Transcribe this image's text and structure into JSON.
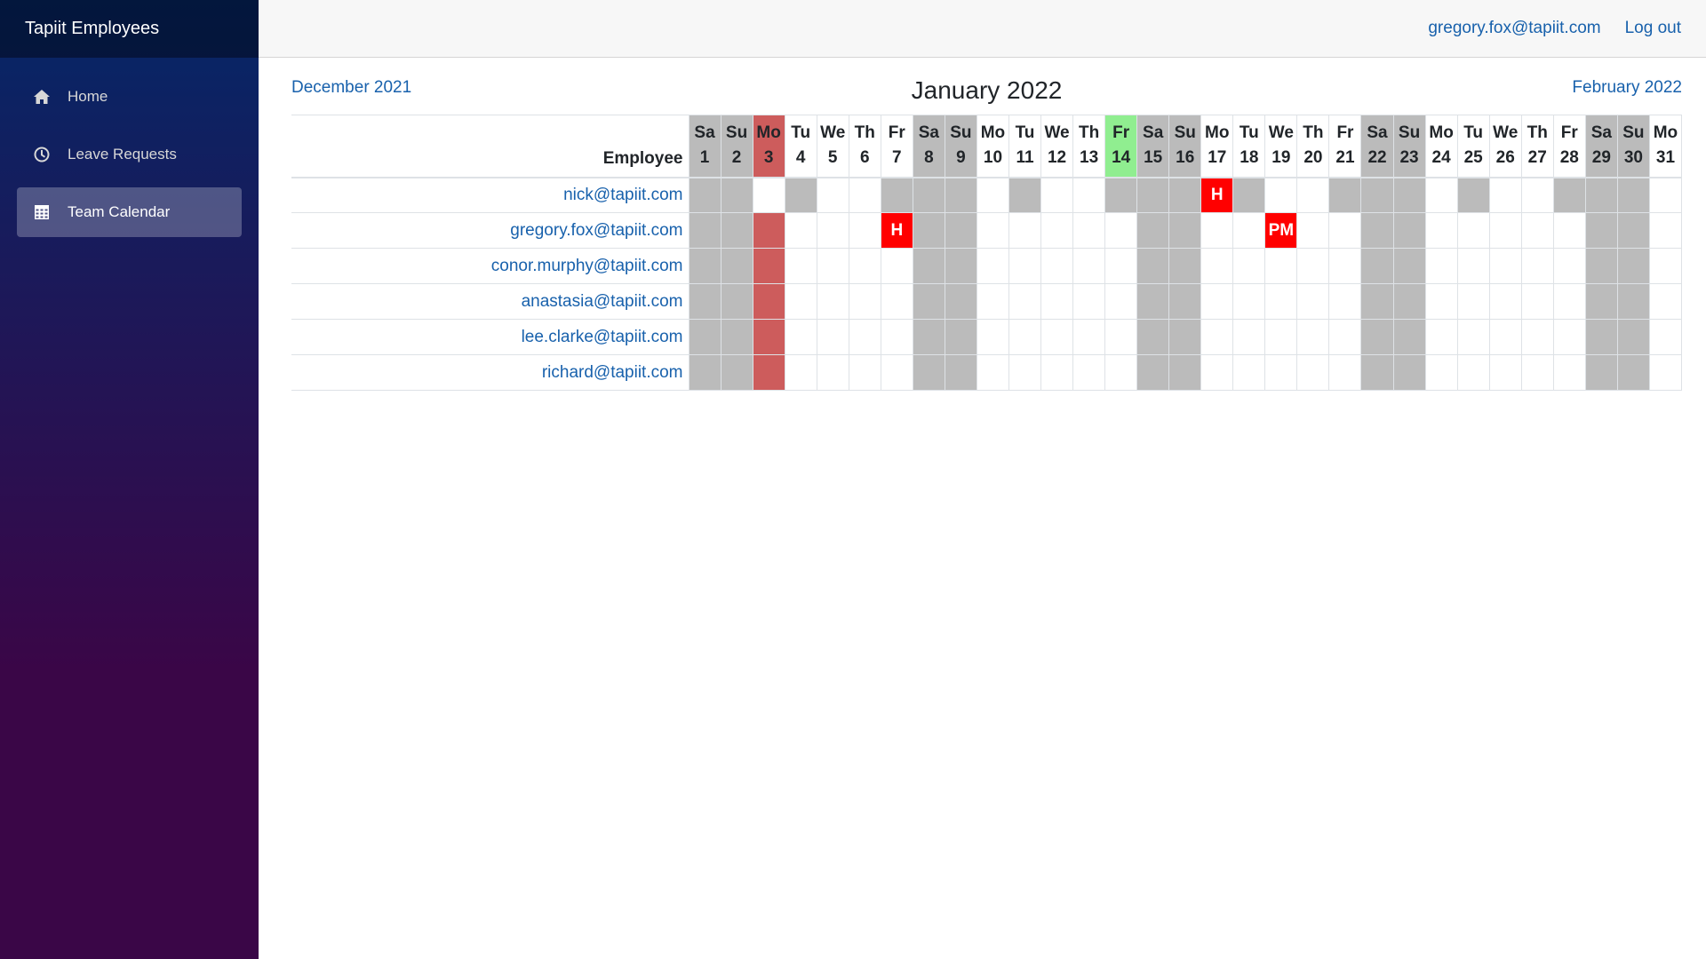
{
  "app": {
    "brand": "Tapiit Employees"
  },
  "sidebar": {
    "items": [
      {
        "label": "Home",
        "icon": "home-icon",
        "active": false
      },
      {
        "label": "Leave Requests",
        "icon": "clock-icon",
        "active": false
      },
      {
        "label": "Team Calendar",
        "icon": "calendar-icon",
        "active": true
      }
    ]
  },
  "header": {
    "user_email": "gregory.fox@tapiit.com",
    "logout_label": "Log out"
  },
  "calendar": {
    "prev_month": "December 2021",
    "title": "January 2022",
    "next_month": "February 2022",
    "employee_header": "Employee",
    "days": [
      {
        "abbr": "Sa",
        "num": "1",
        "type": "weekend"
      },
      {
        "abbr": "Su",
        "num": "2",
        "type": "weekend"
      },
      {
        "abbr": "Mo",
        "num": "3",
        "type": "holiday"
      },
      {
        "abbr": "Tu",
        "num": "4",
        "type": "weekday"
      },
      {
        "abbr": "We",
        "num": "5",
        "type": "weekday"
      },
      {
        "abbr": "Th",
        "num": "6",
        "type": "weekday"
      },
      {
        "abbr": "Fr",
        "num": "7",
        "type": "weekday"
      },
      {
        "abbr": "Sa",
        "num": "8",
        "type": "weekend"
      },
      {
        "abbr": "Su",
        "num": "9",
        "type": "weekend"
      },
      {
        "abbr": "Mo",
        "num": "10",
        "type": "weekday"
      },
      {
        "abbr": "Tu",
        "num": "11",
        "type": "weekday"
      },
      {
        "abbr": "We",
        "num": "12",
        "type": "weekday"
      },
      {
        "abbr": "Th",
        "num": "13",
        "type": "weekday"
      },
      {
        "abbr": "Fr",
        "num": "14",
        "type": "today"
      },
      {
        "abbr": "Sa",
        "num": "15",
        "type": "weekend"
      },
      {
        "abbr": "Su",
        "num": "16",
        "type": "weekend"
      },
      {
        "abbr": "Mo",
        "num": "17",
        "type": "weekday"
      },
      {
        "abbr": "Tu",
        "num": "18",
        "type": "weekday"
      },
      {
        "abbr": "We",
        "num": "19",
        "type": "weekday"
      },
      {
        "abbr": "Th",
        "num": "20",
        "type": "weekday"
      },
      {
        "abbr": "Fr",
        "num": "21",
        "type": "weekday"
      },
      {
        "abbr": "Sa",
        "num": "22",
        "type": "weekend"
      },
      {
        "abbr": "Su",
        "num": "23",
        "type": "weekend"
      },
      {
        "abbr": "Mo",
        "num": "24",
        "type": "weekday"
      },
      {
        "abbr": "Tu",
        "num": "25",
        "type": "weekday"
      },
      {
        "abbr": "We",
        "num": "26",
        "type": "weekday"
      },
      {
        "abbr": "Th",
        "num": "27",
        "type": "weekday"
      },
      {
        "abbr": "Fr",
        "num": "28",
        "type": "weekday"
      },
      {
        "abbr": "Sa",
        "num": "29",
        "type": "weekend"
      },
      {
        "abbr": "Su",
        "num": "30",
        "type": "weekend"
      },
      {
        "abbr": "Mo",
        "num": "31",
        "type": "weekday"
      }
    ],
    "employees": [
      {
        "email": "nick@tapiit.com",
        "cells": [
          "W",
          "W",
          "",
          "W",
          "",
          "",
          "W",
          "W",
          "W",
          "",
          "W",
          "",
          "",
          "W",
          "W",
          "W",
          "L:H",
          "W",
          "",
          "",
          "W",
          "W",
          "W",
          "",
          "W",
          "",
          "",
          "W",
          "W",
          "W",
          ""
        ]
      },
      {
        "email": "gregory.fox@tapiit.com",
        "cells": [
          "W",
          "W",
          "X",
          "",
          "",
          "",
          "L:H",
          "W",
          "W",
          "",
          "",
          "",
          "",
          "",
          "W",
          "W",
          "",
          "",
          "L:PM",
          "",
          "",
          "W",
          "W",
          "",
          "",
          "",
          "",
          "",
          "W",
          "W",
          ""
        ]
      },
      {
        "email": "conor.murphy@tapiit.com",
        "cells": [
          "W",
          "W",
          "X",
          "",
          "",
          "",
          "",
          "W",
          "W",
          "",
          "",
          "",
          "",
          "",
          "W",
          "W",
          "",
          "",
          "",
          "",
          "",
          "W",
          "W",
          "",
          "",
          "",
          "",
          "",
          "W",
          "W",
          ""
        ]
      },
      {
        "email": "anastasia@tapiit.com",
        "cells": [
          "W",
          "W",
          "X",
          "",
          "",
          "",
          "",
          "W",
          "W",
          "",
          "",
          "",
          "",
          "",
          "W",
          "W",
          "",
          "",
          "",
          "",
          "",
          "W",
          "W",
          "",
          "",
          "",
          "",
          "",
          "W",
          "W",
          ""
        ]
      },
      {
        "email": "lee.clarke@tapiit.com",
        "cells": [
          "W",
          "W",
          "X",
          "",
          "",
          "",
          "",
          "W",
          "W",
          "",
          "",
          "",
          "",
          "",
          "W",
          "W",
          "",
          "",
          "",
          "",
          "",
          "W",
          "W",
          "",
          "",
          "",
          "",
          "",
          "W",
          "W",
          ""
        ]
      },
      {
        "email": "richard@tapiit.com",
        "cells": [
          "W",
          "W",
          "X",
          "",
          "",
          "",
          "",
          "W",
          "W",
          "",
          "",
          "",
          "",
          "",
          "W",
          "W",
          "",
          "",
          "",
          "",
          "",
          "W",
          "W",
          "",
          "",
          "",
          "",
          "",
          "W",
          "W",
          ""
        ]
      }
    ]
  }
}
